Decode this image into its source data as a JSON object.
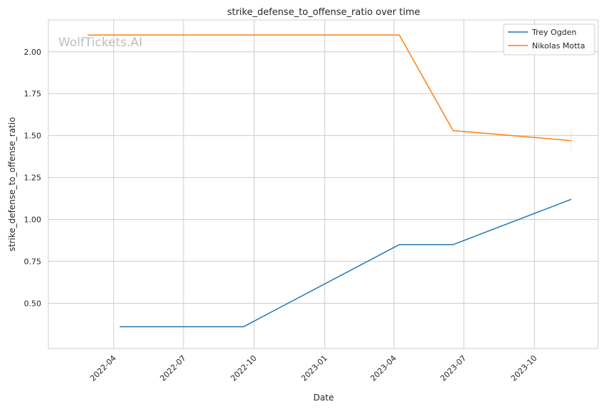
{
  "chart_data": {
    "type": "line",
    "title": "strike_defense_to_offense_ratio over time",
    "xlabel": "Date",
    "ylabel": "strike_defense_to_offense_ratio",
    "watermark": "WolfTickets.AI",
    "grid": true,
    "legend_position": "top-right",
    "xlim": [
      "2022-01-06",
      "2023-12-23"
    ],
    "ylim": [
      0.23,
      2.19
    ],
    "x_ticks": [
      "2022-04",
      "2022-07",
      "2022-10",
      "2023-01",
      "2023-04",
      "2023-07",
      "2023-10"
    ],
    "y_ticks": [
      "0.50",
      "0.75",
      "1.00",
      "1.25",
      "1.50",
      "1.75",
      "2.00"
    ],
    "series": [
      {
        "name": "Trey Ogden",
        "color": "#1f77b4",
        "points": [
          {
            "x": "2022-04-09",
            "y": 0.36
          },
          {
            "x": "2022-09-17",
            "y": 0.36
          },
          {
            "x": "2023-04-08",
            "y": 0.85
          },
          {
            "x": "2023-06-17",
            "y": 0.85
          },
          {
            "x": "2023-11-18",
            "y": 1.12
          }
        ]
      },
      {
        "name": "Nikolas Motta",
        "color": "#ff7f0e",
        "points": [
          {
            "x": "2022-02-26",
            "y": 2.1
          },
          {
            "x": "2023-04-08",
            "y": 2.1
          },
          {
            "x": "2023-06-17",
            "y": 1.53
          },
          {
            "x": "2023-11-18",
            "y": 1.47
          }
        ]
      }
    ]
  }
}
